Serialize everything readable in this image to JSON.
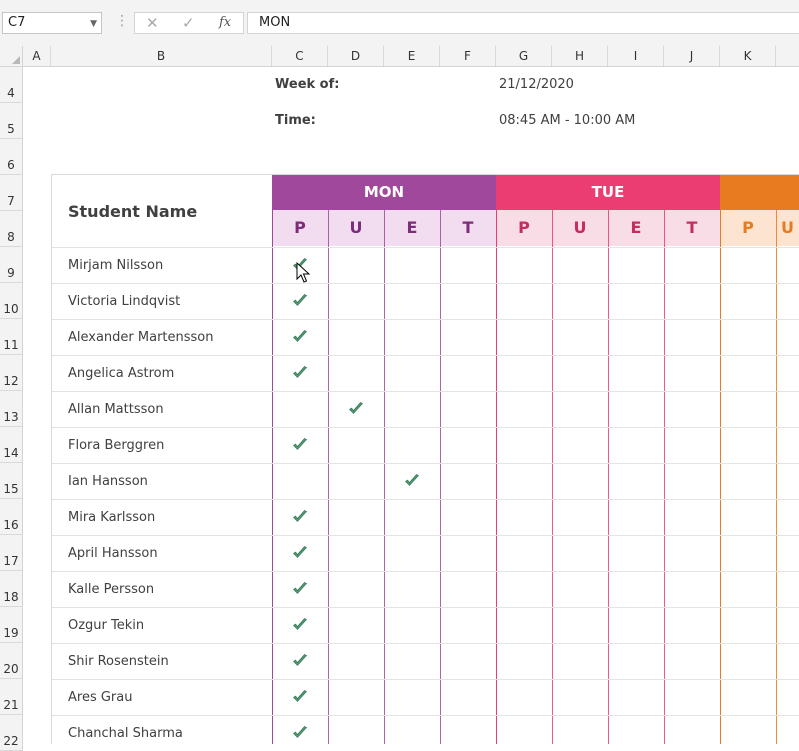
{
  "formula_bar": {
    "name_box": "C7",
    "cancel_icon": "✕",
    "enter_icon": "✓",
    "fx_label": "fx",
    "formula": "MON"
  },
  "columns": [
    "A",
    "B",
    "C",
    "D",
    "E",
    "F",
    "G",
    "H",
    "I",
    "J",
    "K"
  ],
  "rows": [
    "4",
    "5",
    "6",
    "7",
    "8",
    "9",
    "10",
    "11",
    "12",
    "13",
    "14",
    "15",
    "16",
    "17",
    "18",
    "19",
    "20",
    "21",
    "22"
  ],
  "sheet": {
    "week_label": "Week of:",
    "week_value": "21/12/2020",
    "time_label": "Time:",
    "time_value": "08:45 AM - 10:00 AM",
    "student_header": "Student Name",
    "days": [
      {
        "name": "MON",
        "color": "#a0489c",
        "light": "#f2dcef",
        "text": "#7b2d79"
      },
      {
        "name": "TUE",
        "color": "#ec3d72",
        "light": "#f9dde6",
        "text": "#c42d5d"
      },
      {
        "name": "",
        "color": "#e87a1f",
        "light": "#fce4d0",
        "text": "#e87a1f"
      }
    ],
    "sub_labels": [
      "P",
      "U",
      "E",
      "T"
    ],
    "students": [
      {
        "name": "Mirjam Nilsson",
        "mark": "P"
      },
      {
        "name": "Victoria Lindqvist",
        "mark": "P"
      },
      {
        "name": "Alexander Martensson",
        "mark": "P"
      },
      {
        "name": "Angelica Astrom",
        "mark": "P"
      },
      {
        "name": "Allan Mattsson",
        "mark": "U"
      },
      {
        "name": "Flora Berggren",
        "mark": "P"
      },
      {
        "name": "Ian Hansson",
        "mark": "E"
      },
      {
        "name": "Mira Karlsson",
        "mark": "P"
      },
      {
        "name": "April Hansson",
        "mark": "P"
      },
      {
        "name": "Kalle Persson",
        "mark": "P"
      },
      {
        "name": "Ozgur Tekin",
        "mark": "P"
      },
      {
        "name": "Shir Rosenstein",
        "mark": "P"
      },
      {
        "name": "Ares Grau",
        "mark": "P"
      },
      {
        "name": "Chanchal Sharma",
        "mark": "P"
      }
    ],
    "check_color": "#4e9a73"
  }
}
